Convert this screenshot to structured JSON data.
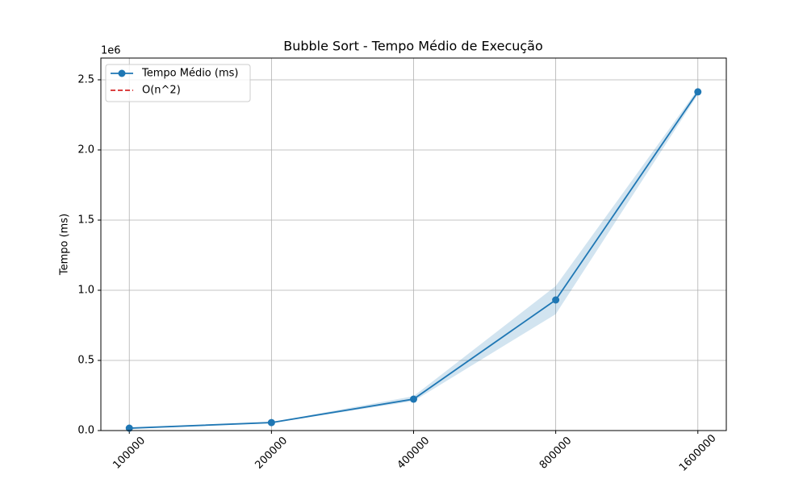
{
  "chart_data": {
    "type": "line",
    "title": "Bubble Sort - Tempo Médio de Execução",
    "y_label": "Tempo (ms)",
    "y_offset_label": "1e6",
    "categories": [
      "100000",
      "200000",
      "400000",
      "800000",
      "1600000"
    ],
    "series": [
      {
        "name": "Tempo Médio (ms)",
        "color": "#1f77b4",
        "marker": "o",
        "values": [
          17000,
          57000,
          224000,
          931000,
          2414000
        ],
        "lower": [
          15000,
          54000,
          210000,
          830000,
          2395000
        ],
        "upper": [
          19000,
          60000,
          245000,
          1030000,
          2433000
        ]
      },
      {
        "name": "O(n^2)",
        "color": "#d62728",
        "dash": true,
        "values": [
          null,
          null,
          null,
          null,
          null
        ]
      }
    ],
    "ylim": [
      0,
      2655000
    ],
    "yticks": [
      {
        "value": 0,
        "label": "0.0"
      },
      {
        "value": 500000,
        "label": "0.5"
      },
      {
        "value": 1000000,
        "label": "1.0"
      },
      {
        "value": 1500000,
        "label": "1.5"
      },
      {
        "value": 2000000,
        "label": "2.0"
      },
      {
        "value": 2500000,
        "label": "2.5"
      }
    ],
    "grid": true,
    "legend": "upper left"
  }
}
